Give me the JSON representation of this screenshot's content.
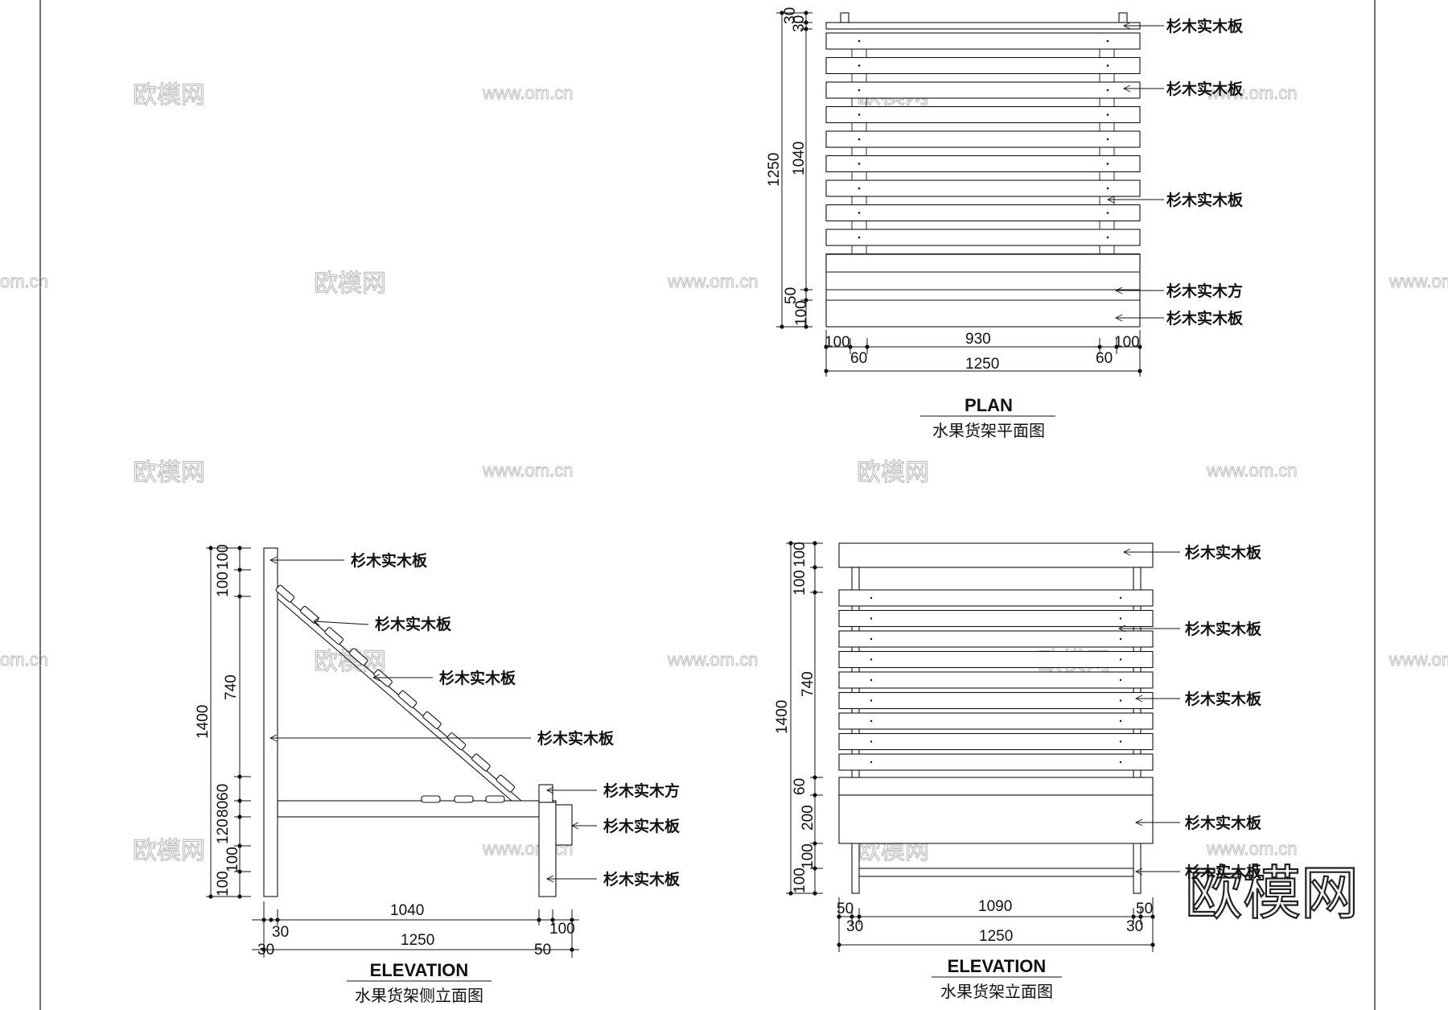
{
  "materials": {
    "board": "杉木实木板",
    "square": "杉木实木方"
  },
  "plan": {
    "title_en": "PLAN",
    "title_cn": "水果货架平面图",
    "dims_left": [
      "30",
      "30",
      "1040",
      "1250",
      "50",
      "100"
    ],
    "dims_bottom_top": [
      "100",
      "930",
      "100"
    ],
    "dims_bottom_mid": [
      "60",
      "60"
    ],
    "dims_bottom_total": "1250"
  },
  "side_elevation": {
    "title_en": "ELEVATION",
    "title_cn": "水果货架侧立面图",
    "dims_left": [
      "100",
      "100",
      "740",
      "1400",
      "60",
      "80",
      "120",
      "100",
      "100"
    ],
    "dims_bottom_top": [
      "30",
      "1040",
      "100"
    ],
    "dims_bottom_total": [
      "30",
      "1250",
      "50"
    ]
  },
  "front_elevation": {
    "title_en": "ELEVATION",
    "title_cn": "水果货架立面图",
    "dims_left": [
      "100",
      "100",
      "740",
      "1400",
      "60",
      "200",
      "100",
      "100"
    ],
    "dims_bottom_top": [
      "50",
      "1090",
      "50"
    ],
    "dims_bottom_mid": [
      "30",
      "30"
    ],
    "dims_bottom_total": "1250"
  },
  "watermark": {
    "text": "欧模网",
    "url": "www.om.cn",
    "url_partial": "om.cn",
    "logo": "欧模网"
  }
}
